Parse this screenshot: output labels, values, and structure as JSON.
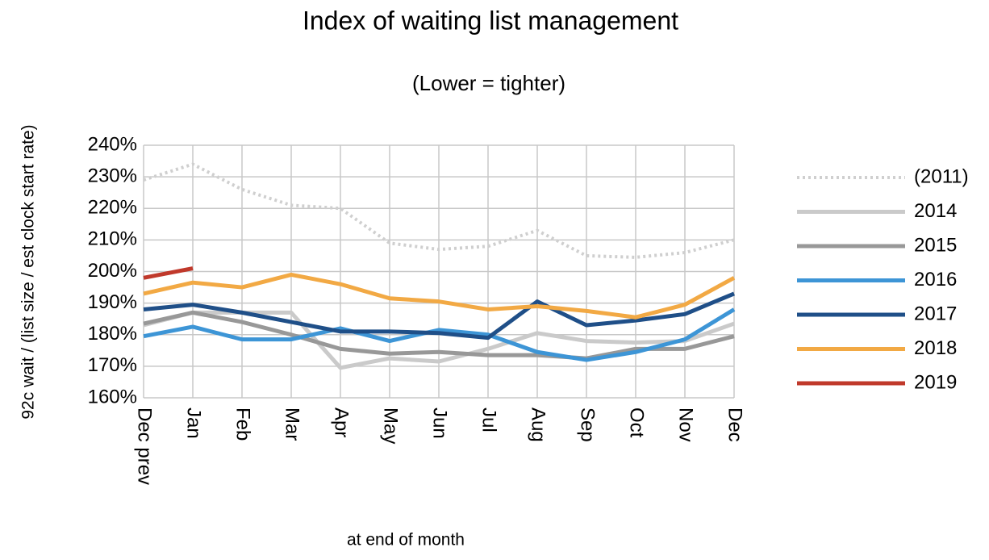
{
  "chart_data": {
    "type": "line",
    "title": "Index of waiting list management",
    "subtitle": "(Lower = tighter)",
    "y_label": "92c wait / (list size / est clock start rate)",
    "x_label": "at end of month",
    "categories": [
      "Dec prev",
      "Jan",
      "Feb",
      "Mar",
      "Apr",
      "May",
      "Jun",
      "Jul",
      "Aug",
      "Sep",
      "Oct",
      "Nov",
      "Dec"
    ],
    "ylim": [
      160,
      240
    ],
    "yticks": [
      {
        "value": 160,
        "label": "160%"
      },
      {
        "value": 170,
        "label": "170%"
      },
      {
        "value": 180,
        "label": "180%"
      },
      {
        "value": 190,
        "label": "190%"
      },
      {
        "value": 200,
        "label": "200%"
      },
      {
        "value": 210,
        "label": "210%"
      },
      {
        "value": 220,
        "label": "220%"
      },
      {
        "value": 230,
        "label": "230%"
      },
      {
        "value": 240,
        "label": "240%"
      }
    ],
    "grid": true,
    "legend": "right",
    "series": [
      {
        "name": "(2011)",
        "color": "#cfcfcf",
        "style": "dotted",
        "values": [
          229,
          234,
          226,
          221,
          220,
          209,
          207,
          208,
          213,
          205,
          204.5,
          206,
          210
        ]
      },
      {
        "name": "2014",
        "color": "#cacaca",
        "values": [
          183,
          187,
          187,
          187,
          169.5,
          172.5,
          171.5,
          175.5,
          180.5,
          178,
          177.5,
          178,
          183.5
        ]
      },
      {
        "name": "2015",
        "color": "#989898",
        "values": [
          183.5,
          187,
          184,
          180,
          175.5,
          174,
          174.5,
          173.5,
          173.5,
          172.5,
          175.5,
          175.5,
          179.5
        ]
      },
      {
        "name": "2016",
        "color": "#3d95d6",
        "values": [
          179.5,
          182.5,
          178.5,
          178.5,
          182,
          178,
          181.5,
          180,
          174.5,
          172,
          174.5,
          178.5,
          188
        ]
      },
      {
        "name": "2017",
        "color": "#1f4f88",
        "values": [
          188,
          189.5,
          187,
          184,
          181,
          181,
          180.5,
          179,
          190.5,
          183,
          184.5,
          186.5,
          193
        ]
      },
      {
        "name": "2018",
        "color": "#f2a944",
        "values": [
          193,
          196.5,
          195,
          199,
          196,
          191.5,
          190.5,
          188,
          189,
          187.5,
          185.5,
          189.5,
          198
        ]
      },
      {
        "name": "2019",
        "color": "#c0392b",
        "values": [
          198,
          201,
          null,
          null,
          null,
          null,
          null,
          null,
          null,
          null,
          null,
          null,
          null
        ]
      }
    ]
  }
}
